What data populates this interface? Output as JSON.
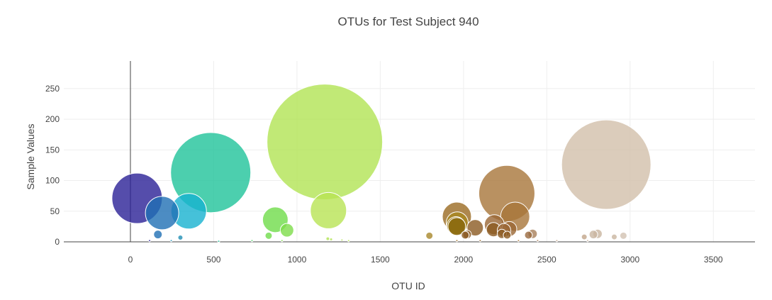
{
  "chart_data": {
    "type": "scatter",
    "title": "OTUs for Test Subject 940",
    "xlabel": "OTU ID",
    "ylabel": "Sample Values",
    "xlim": [
      -400,
      3750
    ],
    "ylim": [
      0,
      295
    ],
    "x_ticks": [
      0,
      500,
      1000,
      1500,
      2000,
      2500,
      3000,
      3500
    ],
    "y_ticks": [
      0,
      50,
      100,
      150,
      200,
      250
    ],
    "grid": true,
    "legend": "none",
    "colorscale": [
      "#2a2196",
      "#1f77b4",
      "#17becf",
      "#1fc3a0",
      "#6fdc4a",
      "#b2e354",
      "#8b5a22",
      "#a7753a",
      "#c9b5a0"
    ],
    "points": [
      {
        "x": 40,
        "y": 71,
        "color": "#2a2196"
      },
      {
        "x": 190,
        "y": 47,
        "color": "#1f6fb4"
      },
      {
        "x": 165,
        "y": 12,
        "color": "#1f6fb4"
      },
      {
        "x": 300,
        "y": 7,
        "color": "#1f8fb4"
      },
      {
        "x": 350,
        "y": 50,
        "color": "#17b2cf"
      },
      {
        "x": 482,
        "y": 113,
        "color": "#1fc39a"
      },
      {
        "x": 830,
        "y": 10,
        "color": "#6fdc4a"
      },
      {
        "x": 870,
        "y": 36,
        "color": "#6fdc4a"
      },
      {
        "x": 940,
        "y": 19,
        "color": "#7ddc4a"
      },
      {
        "x": 1167,
        "y": 163,
        "color": "#b2e354"
      },
      {
        "x": 1189,
        "y": 51,
        "color": "#b8e354"
      },
      {
        "x": 1795,
        "y": 10,
        "color": "#a8872a"
      },
      {
        "x": 1960,
        "y": 41,
        "color": "#9a6a22"
      },
      {
        "x": 1962,
        "y": 31,
        "color": "#a8871f"
      },
      {
        "x": 1955,
        "y": 26,
        "color": "#9a7510"
      },
      {
        "x": 1960,
        "y": 25,
        "color": "#8b6a10"
      },
      {
        "x": 2010,
        "y": 11,
        "color": "#8b5a22"
      },
      {
        "x": 2022,
        "y": 12,
        "color": "#8b5a22"
      },
      {
        "x": 2070,
        "y": 23,
        "color": "#8b5a22"
      },
      {
        "x": 2185,
        "y": 28,
        "color": "#9a6635"
      },
      {
        "x": 2180,
        "y": 20,
        "color": "#8b5a22"
      },
      {
        "x": 2230,
        "y": 13,
        "color": "#8b5a22"
      },
      {
        "x": 2243,
        "y": 19,
        "color": "#9a6635"
      },
      {
        "x": 2260,
        "y": 79,
        "color": "#a7753a"
      },
      {
        "x": 2262,
        "y": 11,
        "color": "#8b5a22"
      },
      {
        "x": 2275,
        "y": 21,
        "color": "#9a6635"
      },
      {
        "x": 2310,
        "y": 41,
        "color": "#a7753a"
      },
      {
        "x": 2390,
        "y": 11,
        "color": "#9a6a40"
      },
      {
        "x": 2415,
        "y": 13,
        "color": "#a7805a"
      },
      {
        "x": 2725,
        "y": 8,
        "color": "#c2a58a"
      },
      {
        "x": 2780,
        "y": 12,
        "color": "#c9b5a0"
      },
      {
        "x": 2805,
        "y": 13,
        "color": "#c9b5a0"
      },
      {
        "x": 2857,
        "y": 126,
        "color": "#d2bfaa"
      },
      {
        "x": 2905,
        "y": 8,
        "color": "#c9b5a0"
      },
      {
        "x": 2960,
        "y": 10,
        "color": "#d2c2b2"
      },
      {
        "x": 115,
        "y": 2,
        "color": "#2a2196"
      },
      {
        "x": 245,
        "y": 2,
        "color": "#1f8fb4"
      },
      {
        "x": 530,
        "y": 1,
        "color": "#1fc39a"
      },
      {
        "x": 730,
        "y": 2,
        "color": "#4fd36a"
      },
      {
        "x": 910,
        "y": 2,
        "color": "#7ddc4a"
      },
      {
        "x": 1185,
        "y": 5,
        "color": "#b2e354"
      },
      {
        "x": 1205,
        "y": 4,
        "color": "#b2e354"
      },
      {
        "x": 1270,
        "y": 3,
        "color": "#b2e354"
      },
      {
        "x": 1310,
        "y": 2,
        "color": "#b8e354"
      },
      {
        "x": 1960,
        "y": 2,
        "color": "#9a6a22"
      },
      {
        "x": 2100,
        "y": 2,
        "color": "#8b5a22"
      },
      {
        "x": 2330,
        "y": 2,
        "color": "#a7753a"
      },
      {
        "x": 2445,
        "y": 2,
        "color": "#a7805a"
      },
      {
        "x": 2560,
        "y": 2,
        "color": "#c2a58a"
      },
      {
        "x": 2745,
        "y": 2,
        "color": "#c9b5a0"
      }
    ]
  }
}
